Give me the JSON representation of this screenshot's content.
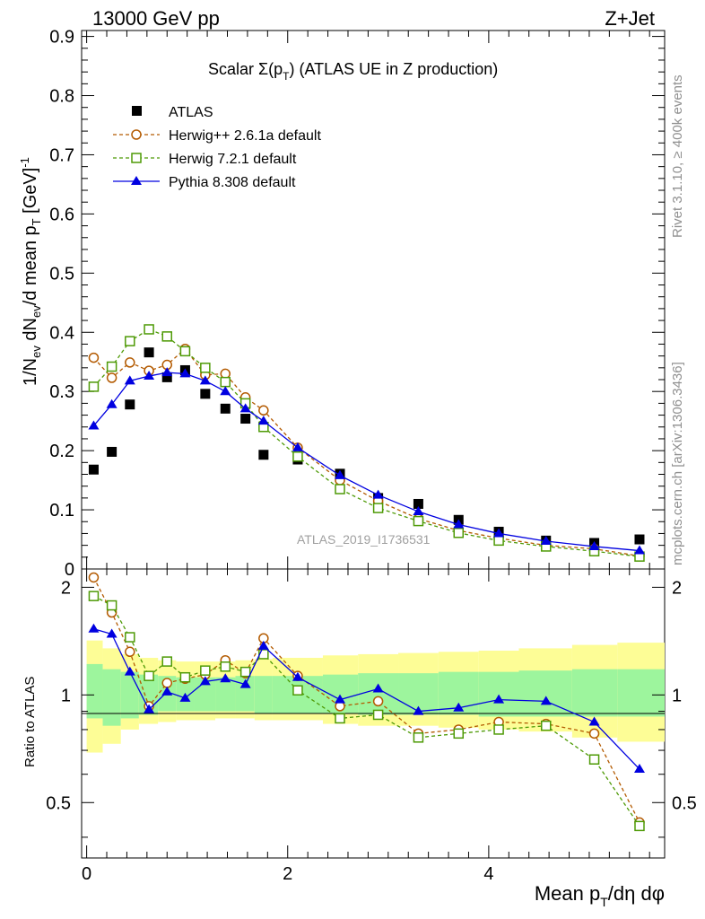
{
  "header": {
    "left": "13000 GeV pp",
    "right": "Z+Jet"
  },
  "side": {
    "rivet": "Rivet 3.1.10, ≥ 400k events",
    "mcplots": "mcplots.cern.ch [arXiv:1306.3436]"
  },
  "chart_data": {
    "type": "scatter",
    "title": "Scalar Σ(pT) (ATLAS UE in Z production)",
    "title_parts": {
      "main": "Scalar Σ(p",
      "sub": "T",
      "tail": ") (ATLAS UE in Z production)"
    },
    "watermark": "ATLAS_2019_I1736531",
    "ylabel": "1/Nev dNev/d mean pT [GeV]^-1",
    "ylabel_parts": {
      "a": "1/N",
      "b": "ev",
      "c": " dN",
      "d": "ev",
      "e": "/d mean p",
      "f": "T",
      "g": " [GeV]",
      "h": "-1"
    },
    "xlabel": "Mean pT/dη dφ",
    "xlabel_parts": {
      "a": "Mean p",
      "b": "T",
      "c": "/dη dφ"
    },
    "ratio_ylabel": "Ratio to ATLAS",
    "xlim": [
      -0.05,
      5.75
    ],
    "ylim": [
      0,
      0.91
    ],
    "ratio_ylim": [
      0.35,
      2.25
    ],
    "x_ticks": [
      "0",
      "2",
      "4"
    ],
    "y_ticks": [
      "0",
      "0.1",
      "0.2",
      "0.3",
      "0.4",
      "0.5",
      "0.6",
      "0.7",
      "0.8",
      "0.9"
    ],
    "ratio_y_ticks": [
      "0.5",
      "1",
      "2"
    ],
    "x": [
      0.07,
      0.25,
      0.43,
      0.62,
      0.8,
      0.98,
      1.18,
      1.38,
      1.58,
      1.76,
      2.1,
      2.52,
      2.9,
      3.3,
      3.7,
      4.1,
      4.57,
      5.05,
      5.5
    ],
    "band_edges": [
      0,
      0.16,
      0.34,
      0.52,
      0.71,
      0.89,
      1.07,
      1.28,
      1.48,
      1.67,
      1.85,
      2.35,
      2.7,
      3.1,
      3.5,
      3.9,
      4.3,
      4.83,
      5.28,
      5.75
    ],
    "band_inner": [
      [
        0.86,
        1.22
      ],
      [
        0.82,
        1.18
      ],
      [
        0.86,
        1.16
      ],
      [
        0.88,
        1.14
      ],
      [
        0.9,
        1.13
      ],
      [
        0.9,
        1.12
      ],
      [
        0.9,
        1.12
      ],
      [
        0.9,
        1.12
      ],
      [
        0.9,
        1.13
      ],
      [
        0.89,
        1.13
      ],
      [
        0.89,
        1.13
      ],
      [
        0.89,
        1.14
      ],
      [
        0.88,
        1.15
      ],
      [
        0.88,
        1.15
      ],
      [
        0.88,
        1.16
      ],
      [
        0.87,
        1.16
      ],
      [
        0.87,
        1.17
      ],
      [
        0.87,
        1.18
      ],
      [
        0.87,
        1.18
      ]
    ],
    "band_outer": [
      [
        0.69,
        1.42
      ],
      [
        0.73,
        1.35
      ],
      [
        0.8,
        1.3
      ],
      [
        0.83,
        1.27
      ],
      [
        0.84,
        1.25
      ],
      [
        0.85,
        1.24
      ],
      [
        0.85,
        1.24
      ],
      [
        0.86,
        1.24
      ],
      [
        0.86,
        1.25
      ],
      [
        0.85,
        1.26
      ],
      [
        0.85,
        1.27
      ],
      [
        0.83,
        1.29
      ],
      [
        0.82,
        1.3
      ],
      [
        0.82,
        1.31
      ],
      [
        0.81,
        1.32
      ],
      [
        0.8,
        1.33
      ],
      [
        0.79,
        1.35
      ],
      [
        0.76,
        1.38
      ],
      [
        0.74,
        1.4
      ]
    ],
    "series": [
      {
        "name": "ATLAS",
        "color": "#000000",
        "marker": "filled-square",
        "values": [
          0.168,
          0.198,
          0.278,
          0.366,
          0.324,
          0.336,
          0.296,
          0.271,
          0.254,
          0.193,
          0.185,
          0.161,
          0.12,
          0.11,
          0.083,
          0.063,
          0.048,
          0.044,
          0.05
        ]
      },
      {
        "name": "Herwig++ 2.6.1a default",
        "color": "#b35a00",
        "marker": "open-circle",
        "dashed": true,
        "values": [
          0.357,
          0.323,
          0.349,
          0.335,
          0.345,
          0.372,
          0.328,
          0.33,
          0.29,
          0.268,
          0.205,
          0.15,
          0.115,
          0.085,
          0.065,
          0.052,
          0.04,
          0.034,
          0.022
        ],
        "ratio": [
          2.13,
          1.7,
          1.32,
          0.93,
          1.08,
          1.11,
          1.14,
          1.25,
          1.15,
          1.44,
          1.13,
          0.93,
          0.96,
          0.78,
          0.8,
          0.84,
          0.83,
          0.78,
          0.44
        ]
      },
      {
        "name": "Herwig 7.2.1 default",
        "color": "#4e9a06",
        "marker": "open-square",
        "dashed": true,
        "values": [
          0.308,
          0.342,
          0.385,
          0.405,
          0.393,
          0.368,
          0.34,
          0.316,
          0.28,
          0.24,
          0.19,
          0.135,
          0.103,
          0.081,
          0.061,
          0.048,
          0.038,
          0.03,
          0.021
        ],
        "ratio": [
          1.89,
          1.78,
          1.45,
          1.13,
          1.24,
          1.12,
          1.17,
          1.2,
          1.16,
          1.3,
          1.03,
          0.86,
          0.88,
          0.76,
          0.78,
          0.8,
          0.82,
          0.66,
          0.43
        ]
      },
      {
        "name": "Pythia 8.308 default",
        "color": "#0000e0",
        "marker": "filled-triangle",
        "values": [
          0.242,
          0.278,
          0.318,
          0.326,
          0.332,
          0.33,
          0.318,
          0.3,
          0.271,
          0.25,
          0.205,
          0.158,
          0.125,
          0.097,
          0.075,
          0.06,
          0.047,
          0.038,
          0.031
        ],
        "ratio": [
          1.53,
          1.48,
          1.16,
          0.91,
          1.02,
          0.98,
          1.09,
          1.11,
          1.07,
          1.37,
          1.12,
          0.97,
          1.04,
          0.9,
          0.92,
          0.97,
          0.96,
          0.84,
          0.62
        ]
      }
    ]
  }
}
